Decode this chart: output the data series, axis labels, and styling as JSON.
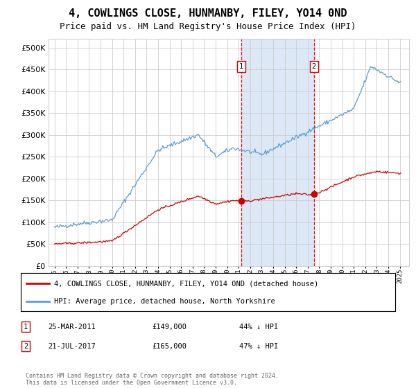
{
  "title": "4, COWLINGS CLOSE, HUNMANBY, FILEY, YO14 0ND",
  "subtitle": "Price paid vs. HM Land Registry's House Price Index (HPI)",
  "hpi_label": "HPI: Average price, detached house, North Yorkshire",
  "property_label": "4, COWLINGS CLOSE, HUNMANBY, FILEY, YO14 0ND (detached house)",
  "footer": "Contains HM Land Registry data © Crown copyright and database right 2024.\nThis data is licensed under the Open Government Licence v3.0.",
  "sale1_date": "25-MAR-2011",
  "sale1_price": "£149,000",
  "sale1_hpi": "44% ↓ HPI",
  "sale1_year": 2011.23,
  "sale2_date": "21-JUL-2017",
  "sale2_price": "£165,000",
  "sale2_hpi": "47% ↓ HPI",
  "sale2_year": 2017.55,
  "hpi_color": "#5b9bd5",
  "property_color": "#cc0000",
  "highlight_color": "#dce8f5",
  "marker_color": "#cc0000",
  "grid_color": "#cccccc",
  "background_color": "#ffffff",
  "title_fontsize": 11,
  "subtitle_fontsize": 9,
  "yticks": [
    0,
    50000,
    100000,
    150000,
    200000,
    250000,
    300000,
    350000,
    400000,
    450000,
    500000
  ],
  "ylim": [
    0,
    520000
  ],
  "xlim_start": 1994.5,
  "xlim_end": 2025.8,
  "sale1_value": 149000,
  "sale2_value": 165000
}
